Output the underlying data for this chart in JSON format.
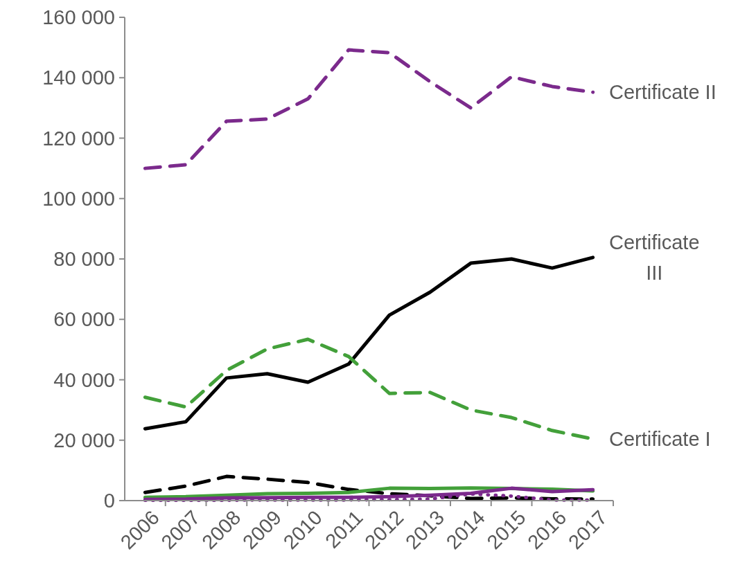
{
  "chart_data": {
    "type": "line",
    "categories": [
      "2006",
      "2007",
      "2008",
      "2009",
      "2010",
      "2011",
      "2012",
      "2013",
      "2014",
      "2015",
      "2016",
      "2017"
    ],
    "ylim": [
      0,
      160000
    ],
    "yticks": [
      {
        "value": 0,
        "label": "0"
      },
      {
        "value": 20000,
        "label": "20 000"
      },
      {
        "value": 40000,
        "label": "40 000"
      },
      {
        "value": 60000,
        "label": "60 000"
      },
      {
        "value": 80000,
        "label": "80 000"
      },
      {
        "value": 100000,
        "label": "100 000"
      },
      {
        "value": 120000,
        "label": "120 000"
      },
      {
        "value": 140000,
        "label": "140 000"
      },
      {
        "value": 160000,
        "label": "160 000"
      }
    ],
    "series": [
      {
        "name": "Certificate II",
        "color": "#7b2a8c",
        "line_style": "dashed",
        "values": [
          110000,
          111200,
          125600,
          126300,
          133000,
          149200,
          148300,
          138700,
          130000,
          140300,
          137100,
          135200
        ]
      },
      {
        "name": "Certificate III",
        "color": "#000000",
        "line_style": "solid",
        "values": [
          23800,
          26100,
          40600,
          42000,
          39200,
          45200,
          61400,
          69000,
          78600,
          80000,
          77000,
          80500
        ]
      },
      {
        "name": "Certificate I",
        "color": "#43a03a",
        "line_style": "dashed",
        "values": [
          34200,
          31000,
          43100,
          50200,
          53400,
          47700,
          35500,
          35800,
          30000,
          27500,
          23200,
          20400
        ]
      },
      {
        "color": "#000000",
        "line_style": "dashed",
        "values": [
          2700,
          4800,
          8000,
          7100,
          6000,
          3700,
          2300,
          1600,
          700,
          900,
          600,
          500
        ]
      },
      {
        "color": "#43a03a",
        "line_style": "solid",
        "values": [
          1100,
          1300,
          1800,
          2300,
          2400,
          2700,
          4100,
          4000,
          4200,
          4000,
          3800,
          3200
        ]
      },
      {
        "color": "#7b2a8c",
        "line_style": "solid",
        "values": [
          400,
          500,
          900,
          1000,
          1100,
          1100,
          1300,
          1800,
          2400,
          4100,
          3000,
          3600
        ]
      },
      {
        "color": "#7b2a8c",
        "line_style": "dotted",
        "values": [
          100,
          100,
          100,
          200,
          200,
          200,
          300,
          500,
          2200,
          1500,
          200,
          200
        ]
      }
    ]
  }
}
